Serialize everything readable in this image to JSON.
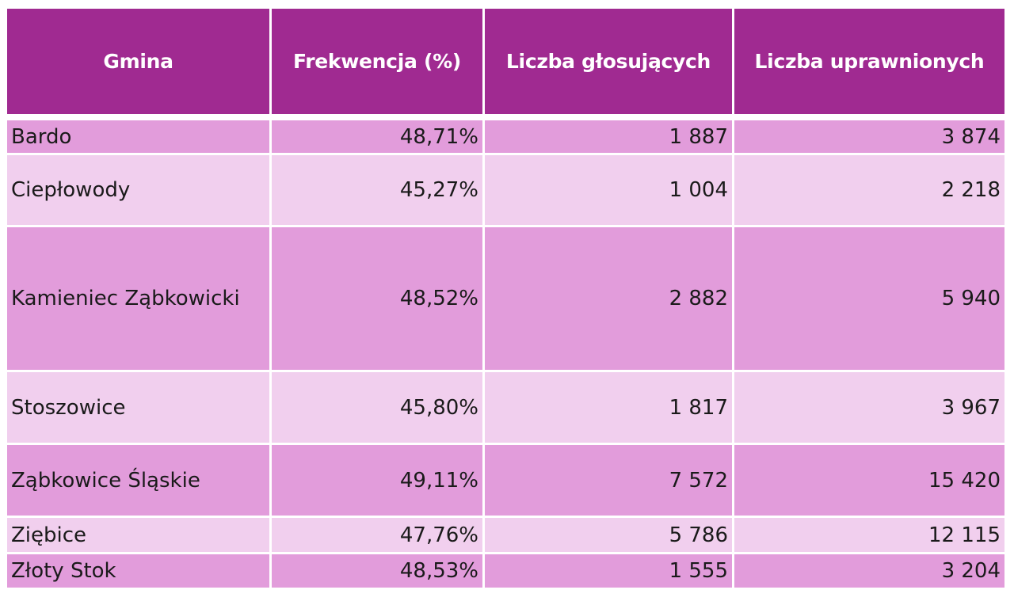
{
  "table": {
    "headers": [
      "Gmina",
      "Frekwencja (%)",
      "Liczba głosujących",
      "Liczba uprawnionych"
    ],
    "rows": [
      {
        "gmina": "Bardo",
        "frekwencja": "48,71%",
        "glosujacych": "1 887",
        "uprawnionych": "3 874"
      },
      {
        "gmina": "Ciepłowody",
        "frekwencja": "45,27%",
        "glosujacych": "1 004",
        "uprawnionych": "2 218"
      },
      {
        "gmina": "Kamieniec Ząbkowicki",
        "frekwencja": "48,52%",
        "glosujacych": "2 882",
        "uprawnionych": "5 940"
      },
      {
        "gmina": "Stoszowice",
        "frekwencja": "45,80%",
        "glosujacych": "1 817",
        "uprawnionych": "3 967"
      },
      {
        "gmina": "Ząbkowice Śląskie",
        "frekwencja": "49,11%",
        "glosujacych": "7 572",
        "uprawnionych": "15 420"
      },
      {
        "gmina": "Ziębice",
        "frekwencja": "47,76%",
        "glosujacych": "5 786",
        "uprawnionych": "12 115"
      },
      {
        "gmina": "Złoty Stok",
        "frekwencja": "48,53%",
        "glosujacych": "1 555",
        "uprawnionych": "3 204"
      }
    ]
  },
  "colors": {
    "header_bg": "#a02a91",
    "header_text": "#ffffff",
    "row_dark": "#e29cdb",
    "row_light": "#f1cfee"
  }
}
